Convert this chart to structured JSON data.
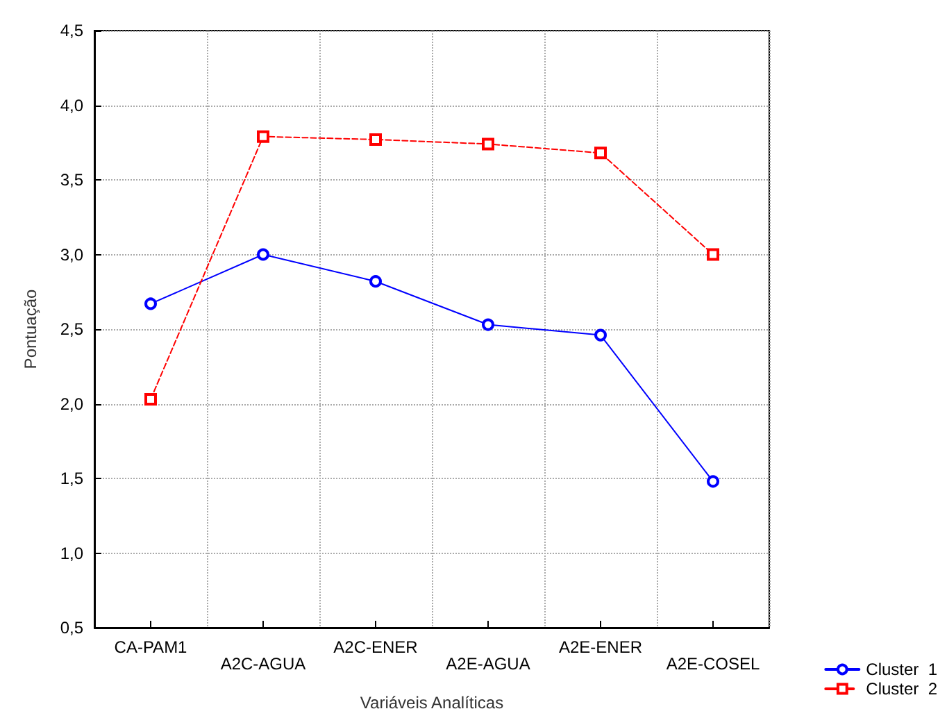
{
  "chart_data": {
    "type": "line",
    "xlabel": "Variáveis Analíticas",
    "ylabel": "Pontuação",
    "categories": [
      "CA-PAM1",
      "A2C-AGUA",
      "A2C-ENER",
      "A2E-AGUA",
      "A2E-ENER",
      "A2E-COSEL"
    ],
    "series": [
      {
        "name": "Cluster  1",
        "color": "#0000ff",
        "marker": "circle",
        "line_style": "solid",
        "values": [
          2.67,
          3.0,
          2.82,
          2.53,
          2.46,
          1.48
        ]
      },
      {
        "name": "Cluster  2",
        "color": "#ff0000",
        "marker": "square",
        "line_style": "dashed",
        "values": [
          2.03,
          3.79,
          3.77,
          3.74,
          3.68,
          3.0
        ]
      }
    ],
    "ylim": [
      0.5,
      4.5
    ],
    "yticks": [
      {
        "value": 0.5,
        "label": "0,5"
      },
      {
        "value": 1,
        "label": "1,0"
      },
      {
        "value": 1.5,
        "label": "1,5"
      },
      {
        "value": 2,
        "label": "2,0"
      },
      {
        "value": 2.5,
        "label": "2,5"
      },
      {
        "value": 3,
        "label": "3,0"
      },
      {
        "value": 3.5,
        "label": "3,5"
      },
      {
        "value": 4,
        "label": "4,0"
      },
      {
        "value": 4.5,
        "label": "4,5"
      }
    ],
    "grid": true,
    "legend": "bottom right"
  }
}
